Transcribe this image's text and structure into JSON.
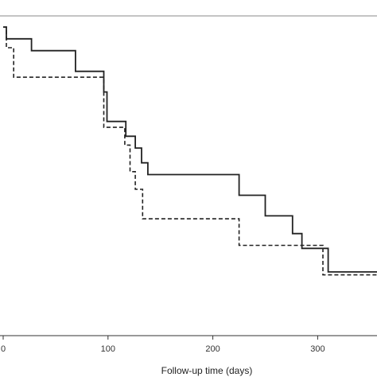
{
  "chart_data": {
    "type": "line",
    "subtype": "kaplan-meier step curves",
    "xlabel": "Follow-up time (days)",
    "ylabel": "",
    "title": "",
    "xlim": [
      0,
      370
    ],
    "ylim": [
      0,
      1
    ],
    "x_ticks": [
      0,
      100,
      200,
      300
    ],
    "x_tick_labels": [
      "0",
      "100",
      "200",
      "300"
    ],
    "grid": false,
    "legend": "none",
    "series": [
      {
        "style": "solid",
        "color": "#222222",
        "x": [
          0,
          3,
          3,
          27,
          27,
          69,
          69,
          96,
          96,
          99,
          99,
          117,
          117,
          126,
          126,
          132,
          132,
          138,
          138,
          150,
          150,
          225,
          225,
          250,
          250,
          276,
          276,
          285,
          285,
          310,
          310,
          370
        ],
        "y": [
          1.0,
          1.0,
          0.96,
          0.96,
          0.92,
          0.92,
          0.85,
          0.85,
          0.78,
          0.78,
          0.68,
          0.68,
          0.63,
          0.63,
          0.59,
          0.59,
          0.54,
          0.54,
          0.5,
          0.5,
          0.5,
          0.5,
          0.43,
          0.43,
          0.36,
          0.36,
          0.3,
          0.3,
          0.25,
          0.25,
          0.17,
          0.17
        ]
      },
      {
        "style": "dashed",
        "color": "#222222",
        "x": [
          0,
          3,
          3,
          10,
          10,
          96,
          96,
          98,
          98,
          116,
          116,
          121,
          121,
          126,
          126,
          133,
          133,
          225,
          225,
          305,
          305,
          370
        ],
        "y": [
          1.0,
          1.0,
          0.93,
          0.93,
          0.83,
          0.83,
          0.66,
          0.66,
          0.66,
          0.66,
          0.6,
          0.6,
          0.51,
          0.51,
          0.45,
          0.45,
          0.35,
          0.35,
          0.26,
          0.26,
          0.16,
          0.16
        ]
      }
    ]
  }
}
